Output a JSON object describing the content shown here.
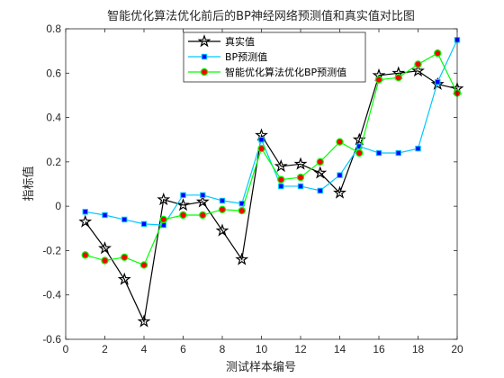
{
  "chart_data": {
    "type": "line",
    "title": "智能优化算法优化前后的BP神经网络预测值和真实值对比图",
    "xlabel": "测试样本编号",
    "ylabel": "指标值",
    "xlim": [
      0,
      20
    ],
    "ylim": [
      -0.6,
      0.8
    ],
    "xticks": [
      0,
      2,
      4,
      6,
      8,
      10,
      12,
      14,
      16,
      18,
      20
    ],
    "yticks": [
      -0.6,
      -0.4,
      -0.2,
      0,
      0.2,
      0.4,
      0.6,
      0.8
    ],
    "grid": false,
    "legend_position": "top-center",
    "x": [
      1,
      2,
      3,
      4,
      5,
      6,
      7,
      8,
      9,
      10,
      11,
      12,
      13,
      14,
      15,
      16,
      17,
      18,
      19,
      20
    ],
    "series": [
      {
        "name": "真实值",
        "color": "#000000",
        "marker": "star",
        "values": [
          -0.07,
          -0.19,
          -0.33,
          -0.52,
          0.03,
          0.005,
          0.02,
          -0.11,
          -0.24,
          0.32,
          0.18,
          0.19,
          0.15,
          0.06,
          0.3,
          0.59,
          0.6,
          0.61,
          0.55,
          0.53
        ]
      },
      {
        "name": "BP预测值",
        "color": "#00c8ff",
        "marker": "square",
        "marker_fill": "#0000ff",
        "values": [
          -0.025,
          -0.04,
          -0.06,
          -0.08,
          -0.085,
          0.05,
          0.05,
          0.025,
          0.012,
          0.3,
          0.09,
          0.09,
          0.07,
          0.14,
          0.27,
          0.24,
          0.24,
          0.26,
          0.56,
          0.75
        ]
      },
      {
        "name": "智能优化算法优化BP预测值",
        "color": "#00ff00",
        "marker": "circle",
        "marker_fill": "#ff0000",
        "values": [
          -0.22,
          -0.245,
          -0.23,
          -0.265,
          -0.06,
          -0.04,
          -0.04,
          -0.015,
          -0.02,
          0.26,
          0.12,
          0.13,
          0.2,
          0.29,
          0.24,
          0.57,
          0.58,
          0.64,
          0.69,
          0.51
        ]
      }
    ]
  }
}
